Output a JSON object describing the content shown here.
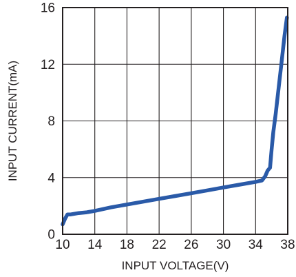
{
  "chart_data": {
    "type": "line",
    "title": "",
    "xlabel": "INPUT VOLTAGE(V)",
    "ylabel": "INPUT CURRENT(mA)",
    "xlim": [
      10,
      38
    ],
    "ylim": [
      0,
      16
    ],
    "xticks": [
      "10",
      "14",
      "18",
      "22",
      "26",
      "30",
      "34",
      "38"
    ],
    "yticks": [
      "0",
      "4",
      "8",
      "12",
      "16"
    ],
    "grid": true,
    "line_color": "#2a5aa8",
    "series": [
      {
        "x": [
          10.0,
          10.3,
          10.6,
          11.0,
          12.0,
          13.0,
          14.0,
          16.0,
          18.0,
          20.0,
          22.0,
          24.0,
          26.0,
          28.0,
          30.0,
          32.0,
          34.0,
          34.8,
          35.2,
          35.5,
          35.8,
          36.0,
          36.2,
          36.5,
          36.8,
          37.2,
          37.6,
          37.9
        ],
        "y": [
          0.7,
          1.1,
          1.4,
          1.4,
          1.5,
          1.55,
          1.65,
          1.9,
          2.1,
          2.3,
          2.5,
          2.7,
          2.9,
          3.1,
          3.3,
          3.5,
          3.7,
          3.8,
          4.1,
          4.5,
          4.7,
          6.0,
          7.2,
          8.5,
          10.0,
          12.0,
          14.0,
          15.3
        ]
      }
    ]
  }
}
